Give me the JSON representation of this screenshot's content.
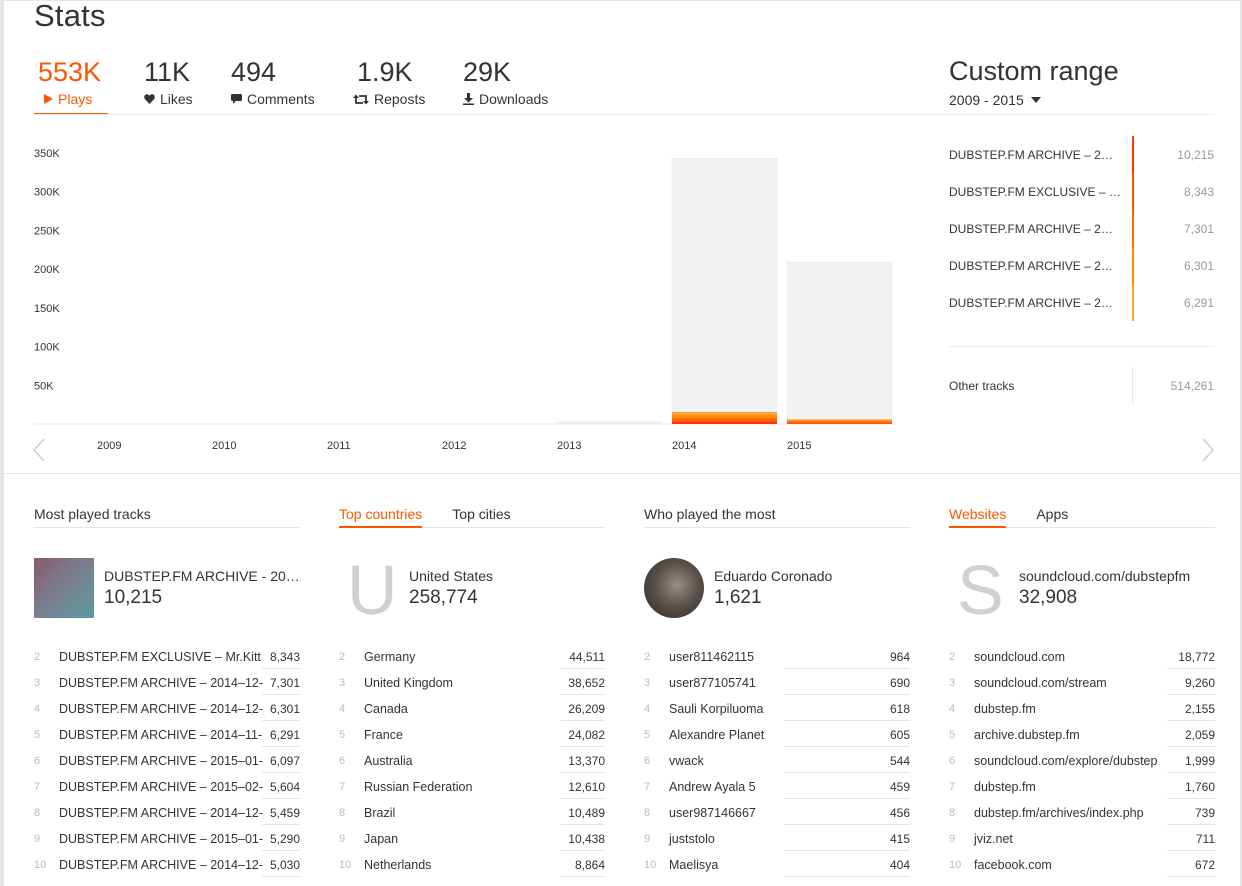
{
  "page": {
    "title": "Stats"
  },
  "metrics": [
    {
      "value": "553K",
      "label": "Plays",
      "icon": "play-icon",
      "active": true
    },
    {
      "value": "11K",
      "label": "Likes",
      "icon": "heart-icon",
      "active": false
    },
    {
      "value": "494",
      "label": "Comments",
      "icon": "comment-icon",
      "active": false
    },
    {
      "value": "1.9K",
      "label": "Reposts",
      "icon": "repost-icon",
      "active": false
    },
    {
      "value": "29K",
      "label": "Downloads",
      "icon": "download-icon",
      "active": false
    }
  ],
  "range": {
    "title": "Custom range",
    "selected": "2009 - 2015"
  },
  "colors": {
    "accent": "#ff5500",
    "stack": [
      "#ff3300",
      "#ff5500",
      "#ff6a00",
      "#ff8800",
      "#ffa033",
      "#f2f2f2"
    ]
  },
  "chart_data": {
    "type": "bar",
    "stacked": true,
    "categories": [
      "2009",
      "2010",
      "2011",
      "2012",
      "2013",
      "2014",
      "2015"
    ],
    "y_ticks": [
      "50K",
      "100K",
      "150K",
      "200K",
      "250K",
      "300K",
      "350K"
    ],
    "ylim": [
      0,
      350000
    ],
    "totals": [
      0,
      0,
      0,
      0,
      1500,
      343000,
      209000
    ],
    "top_track_parts": {
      "2014": [
        2500,
        2500,
        3000,
        3500,
        4000
      ],
      "2015": [
        1000,
        1000,
        1200,
        1300,
        1500
      ]
    }
  },
  "top_tracks": {
    "rows": [
      {
        "name": "DUBSTEP.FM ARCHIVE – 2…",
        "value": "10,215"
      },
      {
        "name": "DUBSTEP.FM EXCLUSIVE – …",
        "value": "8,343"
      },
      {
        "name": "DUBSTEP.FM ARCHIVE – 2…",
        "value": "7,301"
      },
      {
        "name": "DUBSTEP.FM ARCHIVE – 2…",
        "value": "6,301"
      },
      {
        "name": "DUBSTEP.FM ARCHIVE – 2…",
        "value": "6,291"
      }
    ],
    "other": {
      "name": "Other tracks",
      "value": "514,261"
    }
  },
  "panels": {
    "tracks": {
      "title": "Most played tracks",
      "hero": {
        "name": "DUBSTEP.FM ARCHIVE - 20…",
        "value": "10,215"
      },
      "items": [
        {
          "rank": "2",
          "name": "DUBSTEP.FM EXCLUSIVE – Mr.Kitt",
          "value": "8,343"
        },
        {
          "rank": "3",
          "name": "DUBSTEP.FM ARCHIVE – 2014–12-",
          "value": "7,301"
        },
        {
          "rank": "4",
          "name": "DUBSTEP.FM ARCHIVE – 2014–12-",
          "value": "6,301"
        },
        {
          "rank": "5",
          "name": "DUBSTEP.FM ARCHIVE – 2014–11-",
          "value": "6,291"
        },
        {
          "rank": "6",
          "name": "DUBSTEP.FM ARCHIVE – 2015–01-",
          "value": "6,097"
        },
        {
          "rank": "7",
          "name": "DUBSTEP.FM ARCHIVE – 2015–02-",
          "value": "5,604"
        },
        {
          "rank": "8",
          "name": "DUBSTEP.FM ARCHIVE – 2014–12-",
          "value": "5,459"
        },
        {
          "rank": "9",
          "name": "DUBSTEP.FM ARCHIVE – 2015–01-",
          "value": "5,290"
        },
        {
          "rank": "10",
          "name": "DUBSTEP.FM ARCHIVE – 2014–12-",
          "value": "5,030"
        }
      ]
    },
    "countries": {
      "tab_active": "Top countries",
      "tab_other": "Top cities",
      "hero": {
        "letter": "U",
        "name": "United States",
        "value": "258,774"
      },
      "items": [
        {
          "rank": "2",
          "name": "Germany",
          "value": "44,511"
        },
        {
          "rank": "3",
          "name": "United Kingdom",
          "value": "38,652"
        },
        {
          "rank": "4",
          "name": "Canada",
          "value": "26,209"
        },
        {
          "rank": "5",
          "name": "France",
          "value": "24,082"
        },
        {
          "rank": "6",
          "name": "Australia",
          "value": "13,370"
        },
        {
          "rank": "7",
          "name": "Russian Federation",
          "value": "12,610"
        },
        {
          "rank": "8",
          "name": "Brazil",
          "value": "10,489"
        },
        {
          "rank": "9",
          "name": "Japan",
          "value": "10,438"
        },
        {
          "rank": "10",
          "name": "Netherlands",
          "value": "8,864"
        }
      ]
    },
    "listeners": {
      "title": "Who played the most",
      "hero": {
        "name": "Eduardo Coronado",
        "value": "1,621"
      },
      "items": [
        {
          "rank": "2",
          "name": "user811462115",
          "value": "964"
        },
        {
          "rank": "3",
          "name": "user877105741",
          "value": "690"
        },
        {
          "rank": "4",
          "name": "Sauli Korpiluoma",
          "value": "618"
        },
        {
          "rank": "5",
          "name": "Alexandre Planet",
          "value": "605"
        },
        {
          "rank": "6",
          "name": "vwack",
          "value": "544"
        },
        {
          "rank": "7",
          "name": "Andrew Ayala 5",
          "value": "459"
        },
        {
          "rank": "8",
          "name": "user987146667",
          "value": "456"
        },
        {
          "rank": "9",
          "name": "juststolo",
          "value": "415"
        },
        {
          "rank": "10",
          "name": "Maelisya",
          "value": "404"
        }
      ]
    },
    "websites": {
      "tab_active": "Websites",
      "tab_other": "Apps",
      "hero": {
        "letter": "S",
        "name": "soundcloud.com/dubstepfm",
        "value": "32,908"
      },
      "items": [
        {
          "rank": "2",
          "name": "soundcloud.com",
          "value": "18,772"
        },
        {
          "rank": "3",
          "name": "soundcloud.com/stream",
          "value": "9,260"
        },
        {
          "rank": "4",
          "name": "dubstep.fm",
          "value": "2,155"
        },
        {
          "rank": "5",
          "name": "archive.dubstep.fm",
          "value": "2,059"
        },
        {
          "rank": "6",
          "name": "soundcloud.com/explore/dubstep",
          "value": "1,999"
        },
        {
          "rank": "7",
          "name": "dubstep.fm",
          "value": "1,760"
        },
        {
          "rank": "8",
          "name": "dubstep.fm/archives/index.php",
          "value": "739"
        },
        {
          "rank": "9",
          "name": "jviz.net",
          "value": "711"
        },
        {
          "rank": "10",
          "name": "facebook.com",
          "value": "672"
        }
      ]
    }
  }
}
